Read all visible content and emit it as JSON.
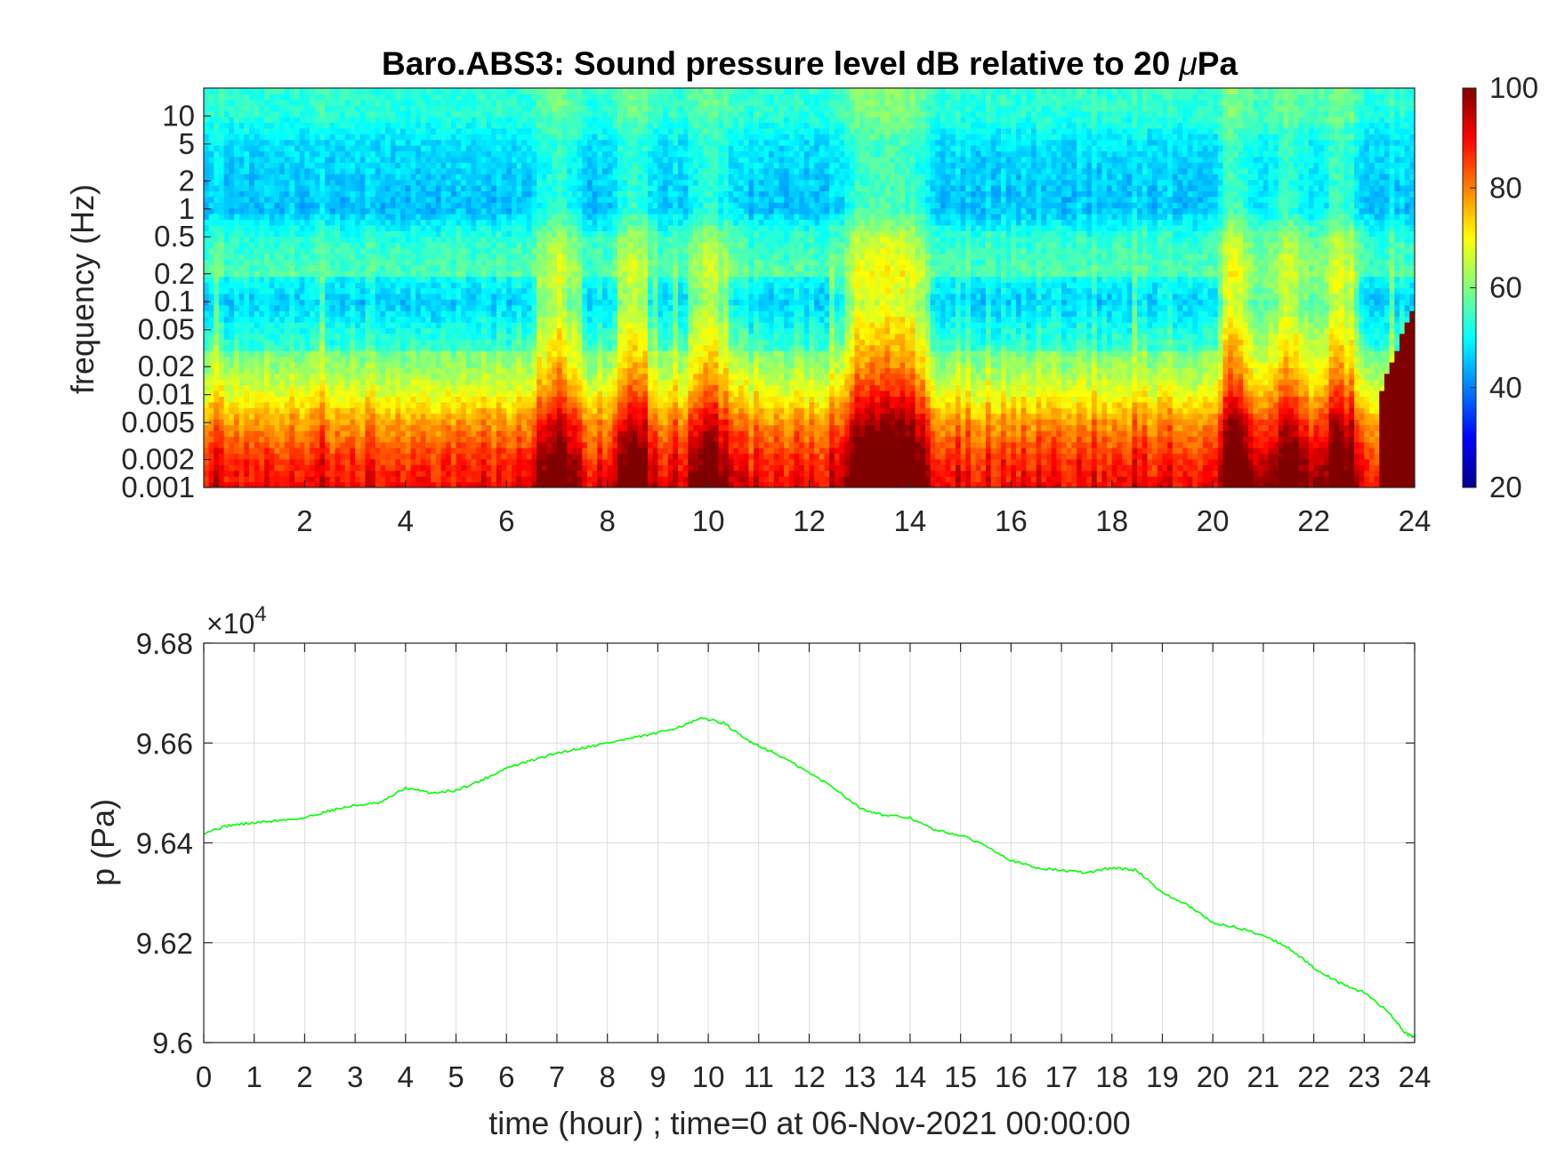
{
  "figure": {
    "title_main": "Baro.ABS3: Sound pressure level dB relative to 20 ",
    "title_mu": "μ",
    "title_unit": "Pa"
  },
  "colors": {
    "line": "#00ff00",
    "axes": "#262626",
    "grid": "#dcdcdc",
    "jet_low": "#00008f",
    "jet_high": "#800000"
  },
  "chart_data": [
    {
      "type": "heatmap",
      "title": "Baro.ABS3: Sound pressure level dB relative to 20 μPa",
      "ylabel": "frequency (Hz)",
      "xlabel": "",
      "y_scale": "log",
      "xlim": [
        0,
        24
      ],
      "ylim": [
        0.001,
        20
      ],
      "x_ticks": [
        2,
        4,
        6,
        8,
        10,
        12,
        14,
        16,
        18,
        20,
        22,
        24
      ],
      "x_tick_labels": [
        "2",
        "4",
        "6",
        "8",
        "10",
        "12",
        "14",
        "16",
        "18",
        "20",
        "22",
        "24"
      ],
      "y_ticks": [
        0.001,
        0.002,
        0.005,
        0.01,
        0.02,
        0.05,
        0.1,
        0.2,
        0.5,
        1,
        2,
        5,
        10
      ],
      "y_tick_labels": [
        "0.001",
        "0.002",
        "0.005",
        "0.01",
        "0.02",
        "0.05",
        "0.1",
        "0.2",
        "0.5",
        "1",
        "2",
        "5",
        "10"
      ],
      "colorbar": {
        "colormap": "jet",
        "range": [
          20,
          100
        ],
        "ticks": [
          20,
          40,
          60,
          80,
          100
        ],
        "tick_labels": [
          "20",
          "40",
          "60",
          "80",
          "100"
        ]
      },
      "approx_spectrum_profile_db": [
        {
          "freq_hz": 0.001,
          "db": 88
        },
        {
          "freq_hz": 0.002,
          "db": 84
        },
        {
          "freq_hz": 0.005,
          "db": 76
        },
        {
          "freq_hz": 0.01,
          "db": 67
        },
        {
          "freq_hz": 0.02,
          "db": 60
        },
        {
          "freq_hz": 0.05,
          "db": 55
        },
        {
          "freq_hz": 0.1,
          "db": 50
        },
        {
          "freq_hz": 0.2,
          "db": 55
        },
        {
          "freq_hz": 0.5,
          "db": 52
        },
        {
          "freq_hz": 1,
          "db": 44
        },
        {
          "freq_hz": 2,
          "db": 45
        },
        {
          "freq_hz": 5,
          "db": 47
        },
        {
          "freq_hz": 10,
          "db": 52
        },
        {
          "freq_hz": 20,
          "db": 53
        }
      ],
      "energetic_hours": [
        7,
        8.5,
        10,
        13,
        13.5,
        14,
        20.5,
        21.5,
        22.5
      ],
      "quiet_band_hz": [
        0.03,
        0.2
      ]
    },
    {
      "type": "line",
      "xlabel": "time (hour) ; time=0 at 06-Nov-2021 00:00:00",
      "ylabel": "p (Pa)",
      "y_exponent_label": "×10",
      "y_exponent_power": "4",
      "xlim": [
        0,
        24
      ],
      "ylim": [
        96000,
        96800
      ],
      "grid": true,
      "x_ticks": [
        0,
        1,
        2,
        3,
        4,
        5,
        6,
        7,
        8,
        9,
        10,
        11,
        12,
        13,
        14,
        15,
        16,
        17,
        18,
        19,
        20,
        21,
        22,
        23,
        24
      ],
      "x_tick_labels": [
        "0",
        "1",
        "2",
        "3",
        "4",
        "5",
        "6",
        "7",
        "8",
        "9",
        "10",
        "11",
        "12",
        "13",
        "14",
        "15",
        "16",
        "17",
        "18",
        "19",
        "20",
        "21",
        "22",
        "23",
        "24"
      ],
      "y_ticks": [
        96000,
        96200,
        96400,
        96600,
        96800
      ],
      "y_tick_labels": [
        "9.6",
        "9.62",
        "9.64",
        "9.66",
        "9.68"
      ],
      "series": [
        {
          "color": "#00ff00",
          "x": [
            0,
            0.5,
            1,
            1.5,
            2,
            2.5,
            3,
            3.5,
            4,
            4.5,
            5,
            5.5,
            6,
            6.5,
            7,
            7.5,
            8,
            8.5,
            9,
            9.5,
            9.9,
            10.3,
            10.7,
            11,
            11.5,
            12,
            12.5,
            13,
            13.5,
            14,
            14.5,
            15,
            15.5,
            16,
            16.5,
            17,
            17.5,
            18,
            18.5,
            19,
            19.5,
            20,
            20.5,
            21,
            21.5,
            22,
            22.5,
            23,
            23.5,
            23.8,
            24
          ],
          "y": [
            96420,
            96435,
            96440,
            96445,
            96450,
            96465,
            96475,
            96480,
            96510,
            96500,
            96505,
            96525,
            96550,
            96565,
            96580,
            96590,
            96600,
            96610,
            96620,
            96635,
            96650,
            96640,
            96610,
            96595,
            96570,
            96540,
            96510,
            96470,
            96455,
            96450,
            96425,
            96415,
            96395,
            96365,
            96350,
            96345,
            96340,
            96350,
            96345,
            96300,
            96275,
            96240,
            96230,
            96215,
            96190,
            96150,
            96120,
            96100,
            96060,
            96020,
            96010
          ]
        }
      ]
    }
  ]
}
